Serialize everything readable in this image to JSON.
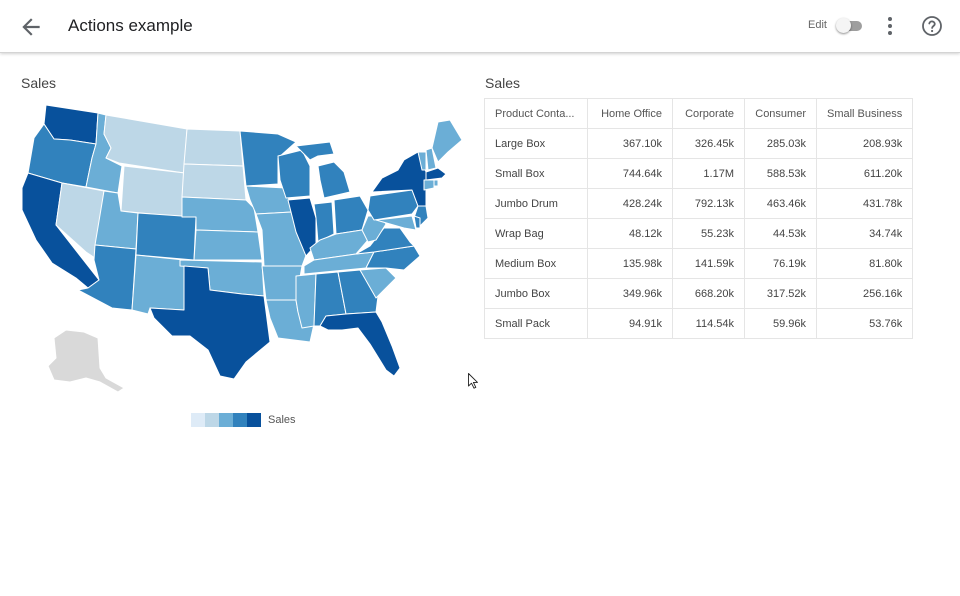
{
  "header": {
    "title": "Actions example",
    "edit_label": "Edit",
    "back_icon": "arrow-left-icon",
    "more_icon": "more-vert-icon",
    "help_icon": "help-icon"
  },
  "map": {
    "title": "Sales",
    "legend_label": "Sales",
    "colors": [
      "#deebf7",
      "#bdd7e7",
      "#6baed6",
      "#3182bd",
      "#08519c"
    ],
    "no_data_color": "#d9d9d9"
  },
  "table": {
    "title": "Sales",
    "columns": [
      "Product Conta...",
      "Home Office",
      "Corporate",
      "Consumer",
      "Small Business"
    ],
    "rows": [
      [
        "Large Box",
        "367.10k",
        "326.45k",
        "285.03k",
        "208.93k"
      ],
      [
        "Small Box",
        "744.64k",
        "1.17M",
        "588.53k",
        "611.20k"
      ],
      [
        "Jumbo Drum",
        "428.24k",
        "792.13k",
        "463.46k",
        "431.78k"
      ],
      [
        "Wrap Bag",
        "48.12k",
        "55.23k",
        "44.53k",
        "34.74k"
      ],
      [
        "Medium Box",
        "135.98k",
        "141.59k",
        "76.19k",
        "81.80k"
      ],
      [
        "Jumbo Box",
        "349.96k",
        "668.20k",
        "317.52k",
        "256.16k"
      ],
      [
        "Small Pack",
        "94.91k",
        "114.54k",
        "59.96k",
        "53.76k"
      ]
    ]
  }
}
